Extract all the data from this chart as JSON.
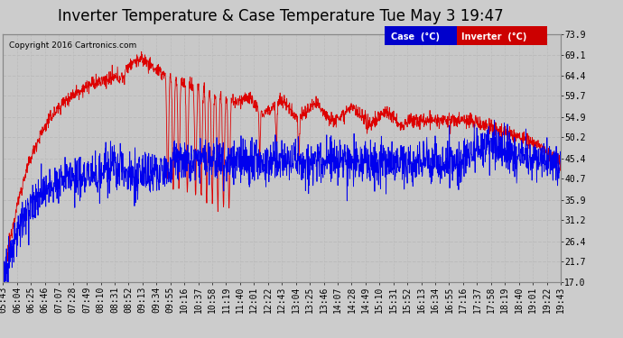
{
  "title": "Inverter Temperature & Case Temperature Tue May 3 19:47",
  "copyright": "Copyright 2016 Cartronics.com",
  "y_ticks": [
    17.0,
    21.7,
    26.4,
    31.2,
    35.9,
    40.7,
    45.4,
    50.2,
    54.9,
    59.7,
    64.4,
    69.1,
    73.9
  ],
  "y_min": 17.0,
  "y_max": 73.9,
  "x_labels": [
    "05:43",
    "06:04",
    "06:25",
    "06:46",
    "07:07",
    "07:28",
    "07:49",
    "08:10",
    "08:31",
    "08:52",
    "09:13",
    "09:34",
    "09:55",
    "10:16",
    "10:37",
    "10:58",
    "11:19",
    "11:40",
    "12:01",
    "12:22",
    "12:43",
    "13:04",
    "13:25",
    "13:46",
    "14:07",
    "14:28",
    "14:49",
    "15:10",
    "15:31",
    "15:52",
    "16:13",
    "16:34",
    "16:55",
    "17:16",
    "17:37",
    "17:58",
    "18:19",
    "18:40",
    "19:01",
    "19:22",
    "19:43"
  ],
  "bg_color": "#cccccc",
  "plot_bg_color": "#c8c8c8",
  "grid_color": "#aaaaaa",
  "case_color": "#0000ee",
  "inverter_color": "#dd0000",
  "legend_case_bg": "#0000cc",
  "legend_inverter_bg": "#cc0000",
  "title_fontsize": 12,
  "tick_fontsize": 7
}
